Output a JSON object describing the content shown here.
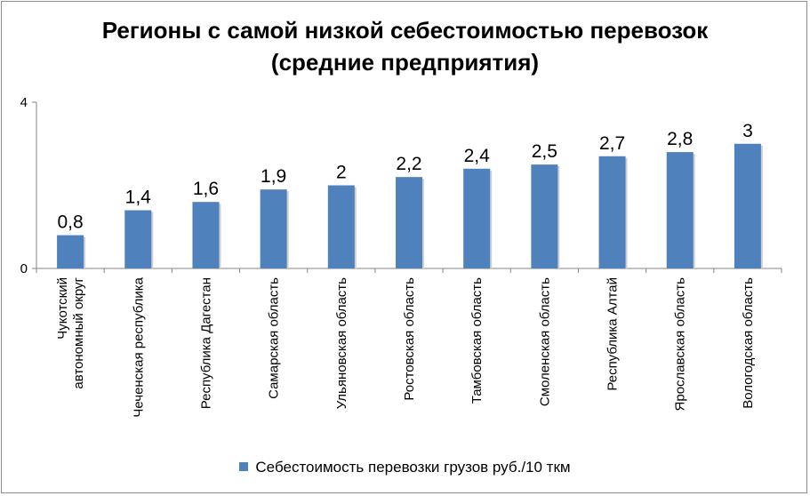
{
  "chart_data": {
    "type": "bar",
    "title_lines": [
      "Регионы с самой низкой себестоимостью перевозок",
      "(средние предприятия)"
    ],
    "categories": [
      [
        "Чукотский",
        "автономный округ"
      ],
      [
        "Чеченская республика"
      ],
      [
        "Республика Дагестан"
      ],
      [
        "Самарская область"
      ],
      [
        "Ульяновская область"
      ],
      [
        "Ростовская область"
      ],
      [
        "Тамбовская область"
      ],
      [
        "Смоленская область"
      ],
      [
        "Республика Алтай"
      ],
      [
        "Ярославская область"
      ],
      [
        "Вологодская область"
      ]
    ],
    "series": [
      {
        "name": "Себестоимость перевозки грузов руб./10 ткм",
        "values": [
          0.8,
          1.4,
          1.6,
          1.9,
          2,
          2.2,
          2.4,
          2.5,
          2.7,
          2.8,
          3
        ],
        "labels": [
          "0,8",
          "1,4",
          "1,6",
          "1,9",
          "2",
          "2,2",
          "2,4",
          "2,5",
          "2,7",
          "2,8",
          "3"
        ],
        "color": "#4f81bd"
      }
    ],
    "ylim": [
      0,
      4
    ],
    "yticks": [
      "0",
      "4"
    ],
    "grid": false,
    "legend_position": "bottom"
  }
}
